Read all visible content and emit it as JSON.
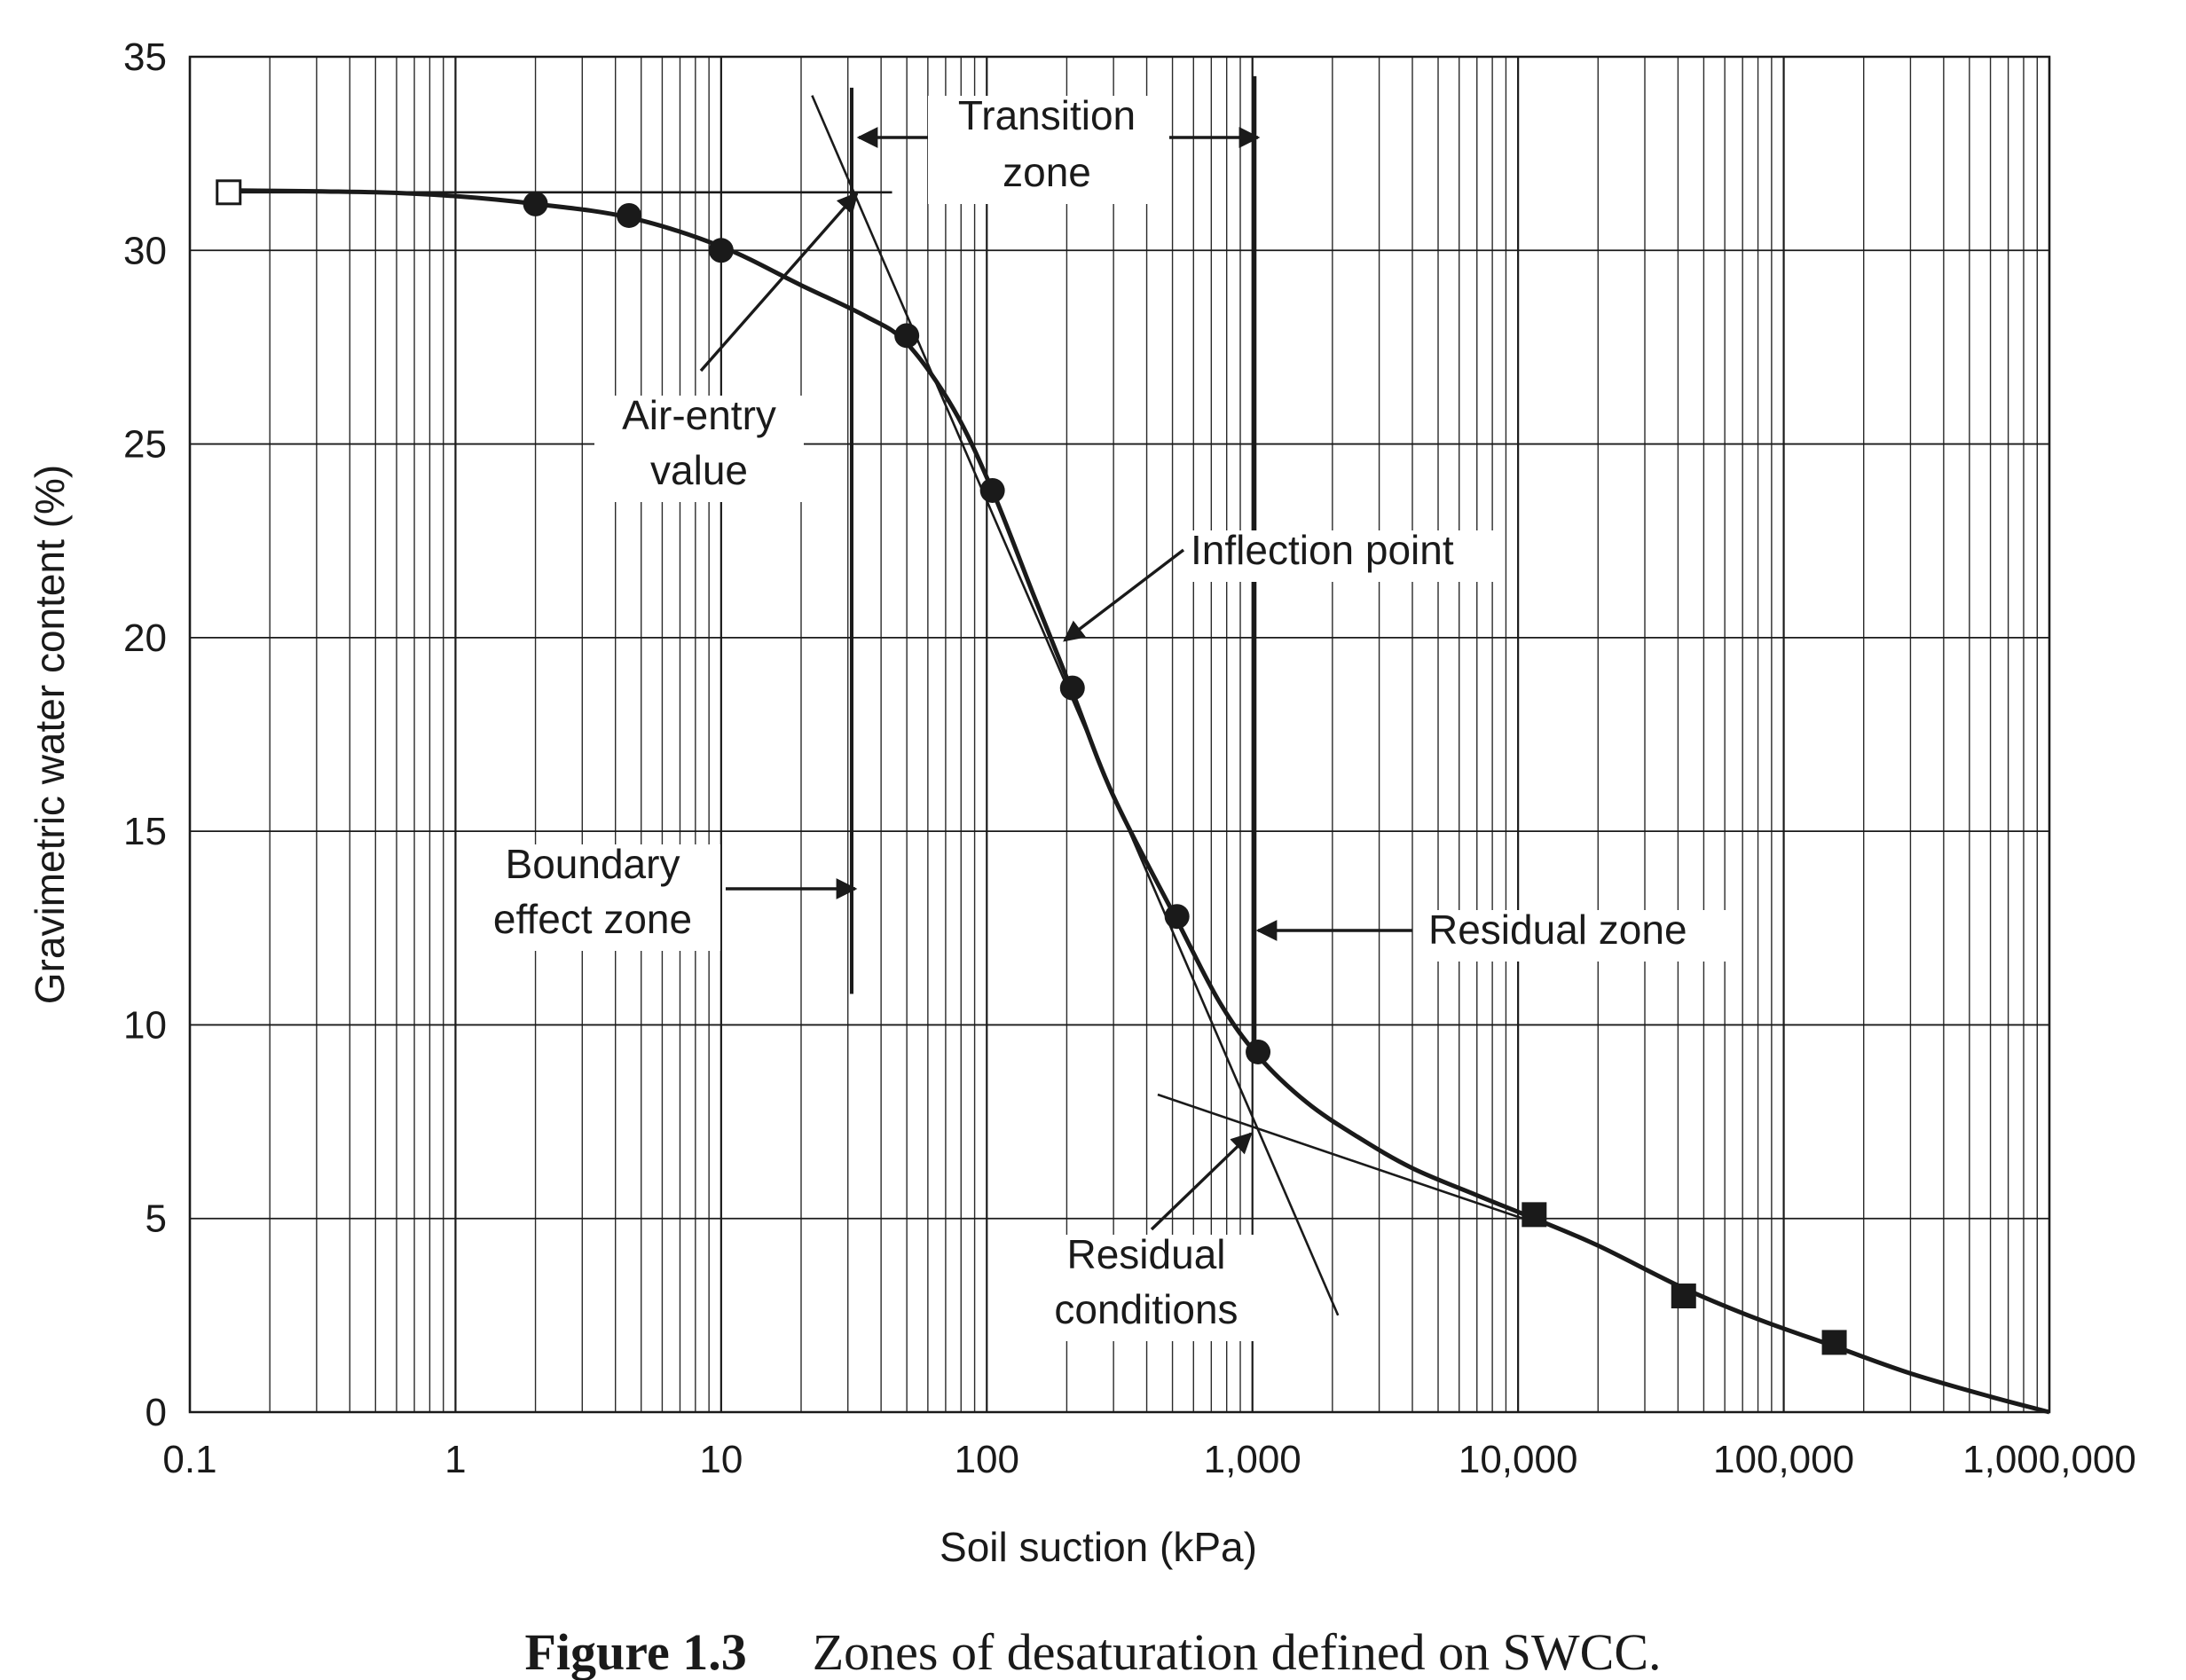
{
  "figure": {
    "label": "Figure 1.3",
    "caption": "Zones of desaturation defined on SWCC."
  },
  "chart_data": {
    "type": "scatter",
    "title": "",
    "xlabel": "Soil suction (kPa)",
    "ylabel": "Gravimetric water content (%)",
    "x_scale": "log",
    "xlim": [
      0.1,
      1000000
    ],
    "ylim": [
      0,
      35
    ],
    "grid": true,
    "x_tick_labels": [
      "0.1",
      "1",
      "10",
      "100",
      "1,000",
      "10,000",
      "100,000",
      "1,000,000"
    ],
    "y_tick_labels": [
      "0",
      "5",
      "10",
      "15",
      "20",
      "25",
      "30",
      "35"
    ],
    "series": [
      {
        "marker": "open-square",
        "points": [
          [
            0.14,
            31.5
          ]
        ]
      },
      {
        "marker": "filled-circle",
        "points": [
          [
            2,
            31.2
          ],
          [
            4.5,
            30.9
          ],
          [
            10,
            30.0
          ],
          [
            50,
            27.8
          ],
          [
            105,
            23.8
          ],
          [
            210,
            18.7
          ],
          [
            520,
            12.8
          ],
          [
            1050,
            9.3
          ]
        ]
      },
      {
        "marker": "filled-square",
        "points": [
          [
            11500,
            5.1
          ],
          [
            42000,
            3.0
          ],
          [
            155000,
            1.8
          ]
        ]
      }
    ],
    "fitted_curve": [
      [
        0.14,
        31.55
      ],
      [
        0.5,
        31.5
      ],
      [
        1,
        31.4
      ],
      [
        2,
        31.2
      ],
      [
        4.5,
        30.85
      ],
      [
        10,
        30.1
      ],
      [
        20,
        29.1
      ],
      [
        35,
        28.3
      ],
      [
        50,
        27.6
      ],
      [
        75,
        25.9
      ],
      [
        105,
        23.8
      ],
      [
        150,
        21.1
      ],
      [
        210,
        18.6
      ],
      [
        300,
        15.9
      ],
      [
        520,
        12.7
      ],
      [
        750,
        10.6
      ],
      [
        1050,
        9.2
      ],
      [
        1600,
        8.0
      ],
      [
        2500,
        7.1
      ],
      [
        4000,
        6.3
      ],
      [
        7000,
        5.6
      ],
      [
        11500,
        5.0
      ],
      [
        20000,
        4.3
      ],
      [
        42000,
        3.2
      ],
      [
        80000,
        2.4
      ],
      [
        155000,
        1.7
      ],
      [
        300000,
        1.0
      ],
      [
        600000,
        0.4
      ],
      [
        1000000,
        0.0
      ]
    ],
    "construction_lines": [
      {
        "name": "saturated-horizontal",
        "from": [
          0.14,
          31.5
        ],
        "to": [
          44,
          31.5
        ]
      },
      {
        "name": "inflection-tangent",
        "from": [
          22,
          34.0
        ],
        "to": [
          2100,
          2.5
        ]
      },
      {
        "name": "residual-tangent",
        "from": [
          440,
          8.2
        ],
        "to": [
          11500,
          4.9
        ]
      },
      {
        "name": "air-entry-vertical",
        "from": [
          31,
          34.2
        ],
        "to": [
          31,
          10.8
        ]
      },
      {
        "name": "residual-vertical",
        "from": [
          1020,
          34.5
        ],
        "to": [
          1020,
          9.3
        ]
      }
    ],
    "annotations": [
      {
        "id": "transition",
        "lines": [
          "Transition",
          "zone"
        ]
      },
      {
        "id": "air_entry",
        "lines": [
          "Air-entry",
          "value"
        ]
      },
      {
        "id": "inflection",
        "lines": [
          "Inflection point"
        ]
      },
      {
        "id": "boundary",
        "lines": [
          "Boundary",
          "effect zone"
        ]
      },
      {
        "id": "residual_zone",
        "lines": [
          "Residual zone"
        ]
      },
      {
        "id": "residual_conditions",
        "lines": [
          "Residual",
          "conditions"
        ]
      }
    ]
  }
}
